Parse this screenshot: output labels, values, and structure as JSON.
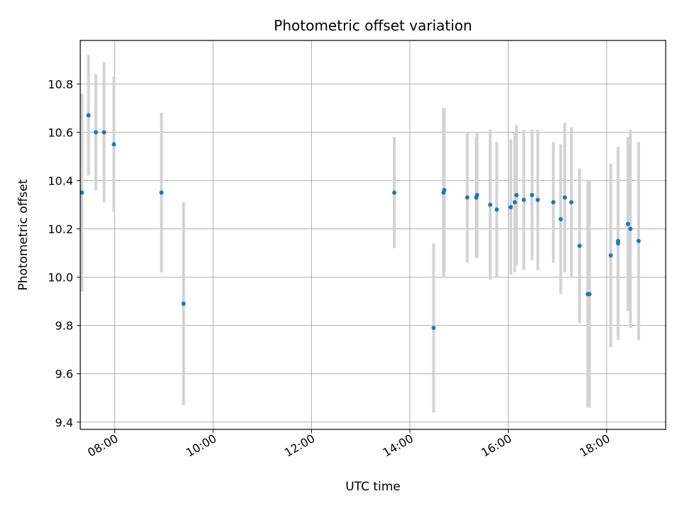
{
  "chart_data": {
    "type": "scatter",
    "title": "Photometric offset variation",
    "xlabel": "UTC time",
    "ylabel": "Photometric offset",
    "x_ticks": [
      "08:00",
      "10:00",
      "12:00",
      "14:00",
      "16:00",
      "18:00"
    ],
    "y_ticks": [
      "9.4",
      "9.6",
      "9.8",
      "10.0",
      "10.2",
      "10.4",
      "10.6",
      "10.8"
    ],
    "xlim": [
      "07:18",
      "19:12"
    ],
    "ylim": [
      9.37,
      10.98
    ],
    "grid": true,
    "colors": {
      "point": "#1f77b4",
      "errorbar": "#d3d3d3",
      "grid": "#b0b0b0"
    },
    "series": [
      {
        "points": [
          {
            "t": "07:20",
            "y": 10.35,
            "err": 0.41
          },
          {
            "t": "07:28",
            "y": 10.67,
            "err": 0.25
          },
          {
            "t": "07:37",
            "y": 10.6,
            "err": 0.24
          },
          {
            "t": "07:47",
            "y": 10.6,
            "err": 0.29
          },
          {
            "t": "07:59",
            "y": 10.55,
            "err": 0.28
          },
          {
            "t": "08:57",
            "y": 10.35,
            "err": 0.33
          },
          {
            "t": "09:24",
            "y": 9.89,
            "err": 0.42
          },
          {
            "t": "13:41",
            "y": 10.35,
            "err": 0.23
          },
          {
            "t": "14:29",
            "y": 9.79,
            "err": 0.35
          },
          {
            "t": "14:41",
            "y": 10.35,
            "err": 0.35
          },
          {
            "t": "14:42",
            "y": 10.36,
            "err": 0.34
          },
          {
            "t": "15:10",
            "y": 10.33,
            "err": 0.27
          },
          {
            "t": "15:21",
            "y": 10.33,
            "err": 0.25
          },
          {
            "t": "15:22",
            "y": 10.34,
            "err": 0.26
          },
          {
            "t": "15:38",
            "y": 10.3,
            "err": 0.31
          },
          {
            "t": "15:46",
            "y": 10.28,
            "err": 0.28
          },
          {
            "t": "16:03",
            "y": 10.29,
            "err": 0.28
          },
          {
            "t": "16:08",
            "y": 10.31,
            "err": 0.29
          },
          {
            "t": "16:10",
            "y": 10.34,
            "err": 0.29
          },
          {
            "t": "16:19",
            "y": 10.32,
            "err": 0.29
          },
          {
            "t": "16:29",
            "y": 10.34,
            "err": 0.27
          },
          {
            "t": "16:36",
            "y": 10.32,
            "err": 0.29
          },
          {
            "t": "16:55",
            "y": 10.31,
            "err": 0.25
          },
          {
            "t": "17:04",
            "y": 10.24,
            "err": 0.31
          },
          {
            "t": "17:09",
            "y": 10.33,
            "err": 0.31
          },
          {
            "t": "17:17",
            "y": 10.31,
            "err": 0.31
          },
          {
            "t": "17:27",
            "y": 10.13,
            "err": 0.32
          },
          {
            "t": "17:37",
            "y": 9.93,
            "err": 0.47
          },
          {
            "t": "17:39",
            "y": 9.93,
            "err": 0.47
          },
          {
            "t": "18:05",
            "y": 10.09,
            "err": 0.38
          },
          {
            "t": "18:14",
            "y": 10.14,
            "err": 0.4
          },
          {
            "t": "18:14",
            "y": 10.15,
            "err": 0.39
          },
          {
            "t": "18:26",
            "y": 10.22,
            "err": 0.36
          },
          {
            "t": "18:29",
            "y": 10.2,
            "err": 0.41
          },
          {
            "t": "18:39",
            "y": 10.15,
            "err": 0.41
          }
        ]
      }
    ]
  }
}
